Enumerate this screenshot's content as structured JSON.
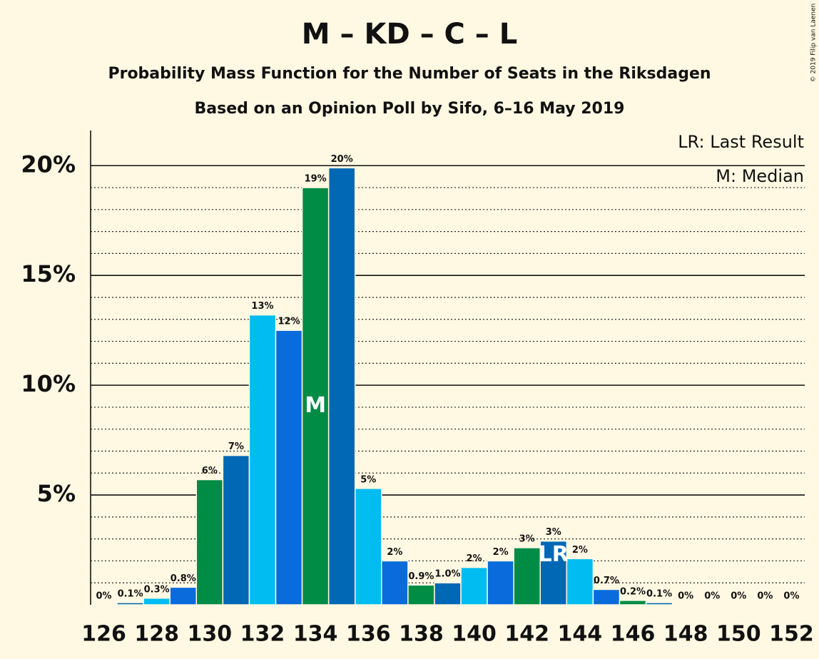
{
  "chart_data": {
    "type": "bar",
    "title": "M – KD – C – L",
    "subtitle": "Probability Mass Function for the Number of Seats in the Riksdagen",
    "subtitle2": "Based on an Opinion Poll by Sifo, 6–16 May 2019",
    "credit": "© 2019 Filip van Laenen",
    "legend": [
      "LR: Last Result",
      "M: Median"
    ],
    "x": [
      126,
      127,
      128,
      129,
      130,
      131,
      132,
      133,
      134,
      135,
      136,
      137,
      138,
      139,
      140,
      141,
      142,
      143,
      144,
      145,
      146,
      147,
      148,
      149,
      150,
      151,
      152
    ],
    "values": [
      0,
      0.1,
      0.3,
      0.8,
      5.7,
      6.8,
      13.2,
      12.5,
      19.0,
      19.9,
      5.3,
      2.0,
      0.9,
      1.0,
      1.7,
      2.0,
      2.6,
      2.9,
      2.1,
      0.7,
      0.2,
      0.1,
      0,
      0,
      0,
      0,
      0
    ],
    "value_labels": [
      "0%",
      "0.1%",
      "0.3%",
      "0.8%",
      "6%",
      "7%",
      "13%",
      "12%",
      "19%",
      "20%",
      "5%",
      "2%",
      "0.9%",
      "1.0%",
      "2%",
      "2%",
      "3%",
      "3%",
      "2%",
      "0.7%",
      "0.2%",
      "0.1%",
      "0%",
      "0%",
      "0%",
      "0%",
      "0%"
    ],
    "colors": [
      "#008c45",
      "#0068b4",
      "#00bcf0",
      "#0a6cdc",
      "#008c45",
      "#0068b4",
      "#00bcf0",
      "#0a6cdc",
      "#008c45",
      "#0068b4",
      "#00bcf0",
      "#0a6cdc",
      "#008c45",
      "#0068b4",
      "#00bcf0",
      "#0a6cdc",
      "#008c45",
      "#0068b4",
      "#00bcf0",
      "#0a6cdc",
      "#008c45",
      "#0068b4",
      "#00bcf0",
      "#0a6cdc",
      "#008c45",
      "#0068b4",
      "#00bcf0"
    ],
    "annotations": [
      {
        "text": "M",
        "x": 134
      },
      {
        "text": "LR",
        "x": 143
      }
    ],
    "xlim": [
      125.5,
      152.5
    ],
    "xticks": [
      126,
      128,
      130,
      132,
      134,
      136,
      138,
      140,
      142,
      144,
      146,
      148,
      150,
      152
    ],
    "ylim": [
      0,
      21.6
    ],
    "yticks": [
      {
        "value": 5,
        "label": "5%"
      },
      {
        "value": 10,
        "label": "10%"
      },
      {
        "value": 15,
        "label": "15%"
      },
      {
        "value": 20,
        "label": "20%"
      }
    ],
    "minor_yticks": [
      1,
      2,
      3,
      4,
      6,
      7,
      8,
      9,
      11,
      12,
      13,
      14,
      16,
      17,
      18,
      19
    ],
    "grid": true
  }
}
